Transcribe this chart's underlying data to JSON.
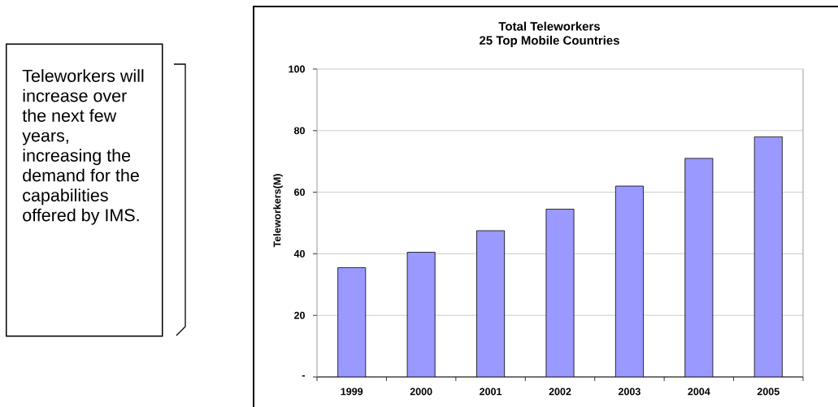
{
  "chart_data": {
    "type": "bar",
    "title": "Total Teleworkers",
    "subtitle": "25 Top Mobile Countries",
    "ylabel": "Teleworkers(M)",
    "categories": [
      "1999",
      "2000",
      "2001",
      "2002",
      "2003",
      "2004",
      "2005"
    ],
    "values": [
      35.5,
      40.5,
      47.5,
      54.5,
      62,
      71,
      78
    ],
    "color": "#9999ff",
    "ylim": [
      0,
      100
    ],
    "yticks": [
      {
        "value": 0,
        "label": "-"
      },
      20,
      40,
      60,
      80,
      100
    ],
    "grid": "y",
    "annotations": [
      "Teleworkers will increase over the next few years, increasing the demand for the capabilities offered by IMS."
    ]
  }
}
